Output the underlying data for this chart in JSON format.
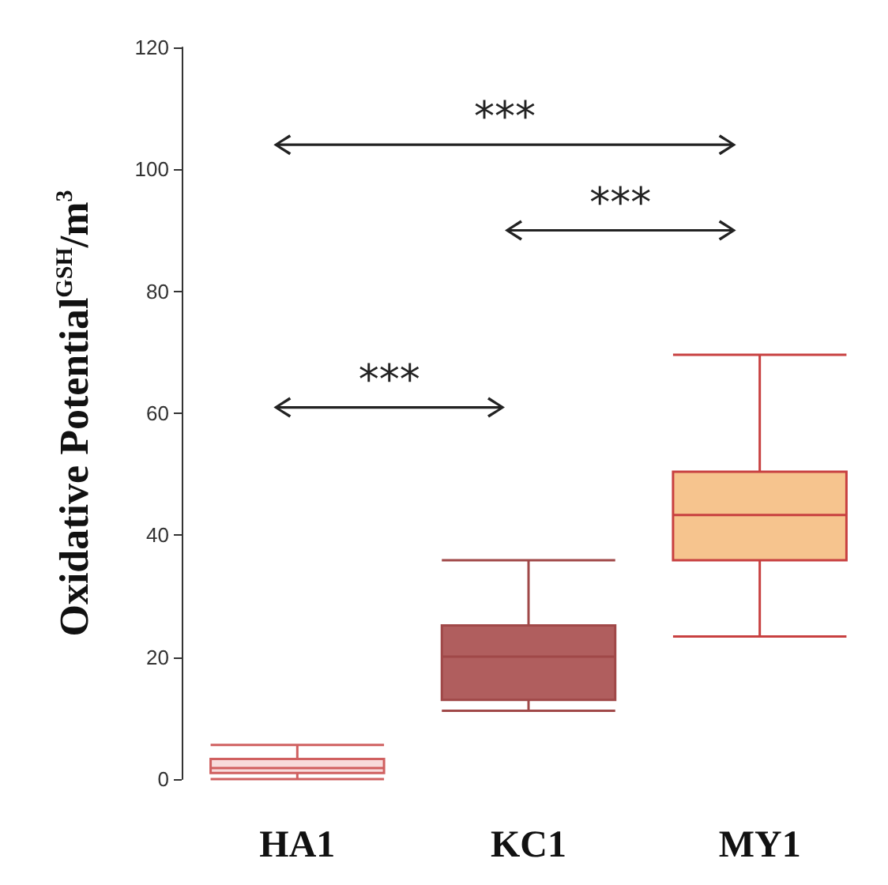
{
  "chart_data": {
    "type": "box",
    "ylabel": "Oxidative Potential$^{GSH}$/m$^{3}$",
    "categories": [
      "HA1",
      "KC1",
      "MY1"
    ],
    "boxes": [
      {
        "low": 0,
        "q1": 1.0,
        "median": 1.8,
        "q3": 3.3,
        "high": 5.6
      },
      {
        "low": 11.2,
        "q1": 13,
        "median": 20.1,
        "q3": 25.2,
        "high": 35.9
      },
      {
        "low": 23.4,
        "q1": 35.9,
        "median": 43.3,
        "q3": 50.4,
        "high": 69.6
      }
    ],
    "colors": [
      "#f8dcdc",
      "#b05e5e",
      "#f6c48e"
    ],
    "ylim": [
      0,
      120
    ],
    "yticks": [
      0,
      20,
      40,
      60,
      80,
      100,
      120
    ],
    "grid": false,
    "annotations": [
      "***",
      "***",
      "***"
    ]
  }
}
